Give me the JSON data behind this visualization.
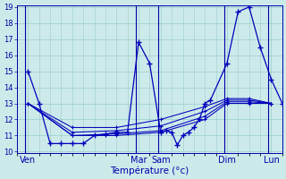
{
  "background_color": "#cdeaea",
  "line_color": "#0000bb",
  "grid_color": "#99cccc",
  "font_color": "#0000aa",
  "ylim": [
    10,
    19
  ],
  "yticks": [
    10,
    11,
    12,
    13,
    14,
    15,
    16,
    17,
    18,
    19
  ],
  "xlabel": "Température (°c)",
  "xlabel_fontsize": 7.5,
  "tick_fontsize": 6,
  "day_tick_fontsize": 7,
  "xlim": [
    0,
    96
  ],
  "day_positions": [
    4,
    44,
    52,
    76,
    92
  ],
  "day_labels": [
    "Ven",
    "Mar",
    "Sam",
    "Dim",
    "Lun"
  ],
  "vline_positions": [
    3,
    43,
    51,
    75,
    91
  ],
  "main_line": {
    "x": [
      4,
      8,
      12,
      16,
      20,
      24,
      28,
      32,
      36,
      40,
      44,
      48,
      52,
      54,
      56,
      58,
      60,
      62,
      64,
      66,
      68,
      70,
      76,
      80,
      84,
      88,
      92,
      96
    ],
    "y": [
      15,
      13,
      10.5,
      10.5,
      10.5,
      10.5,
      11.0,
      11.1,
      11.2,
      11.2,
      16.8,
      15.5,
      11.2,
      11.3,
      11.2,
      10.4,
      11.0,
      11.2,
      11.5,
      12.0,
      13.0,
      13.2,
      15.5,
      18.7,
      19.0,
      16.5,
      14.5,
      13.0
    ]
  },
  "trend_lines": [
    {
      "x": [
        4,
        20,
        36,
        52,
        68,
        76,
        84,
        92
      ],
      "y": [
        13.0,
        11.0,
        11.0,
        11.2,
        12.0,
        13.0,
        13.0,
        13.0
      ]
    },
    {
      "x": [
        4,
        20,
        36,
        52,
        68,
        76,
        84,
        92
      ],
      "y": [
        13.0,
        11.0,
        11.1,
        11.3,
        12.2,
        13.1,
        13.1,
        13.0
      ]
    },
    {
      "x": [
        4,
        20,
        36,
        52,
        68,
        76,
        84,
        92
      ],
      "y": [
        13.0,
        11.2,
        11.3,
        11.6,
        12.5,
        13.2,
        13.2,
        13.0
      ]
    },
    {
      "x": [
        4,
        20,
        36,
        52,
        68,
        76,
        84,
        92
      ],
      "y": [
        13.0,
        11.5,
        11.5,
        12.0,
        12.8,
        13.3,
        13.3,
        13.0
      ]
    }
  ]
}
